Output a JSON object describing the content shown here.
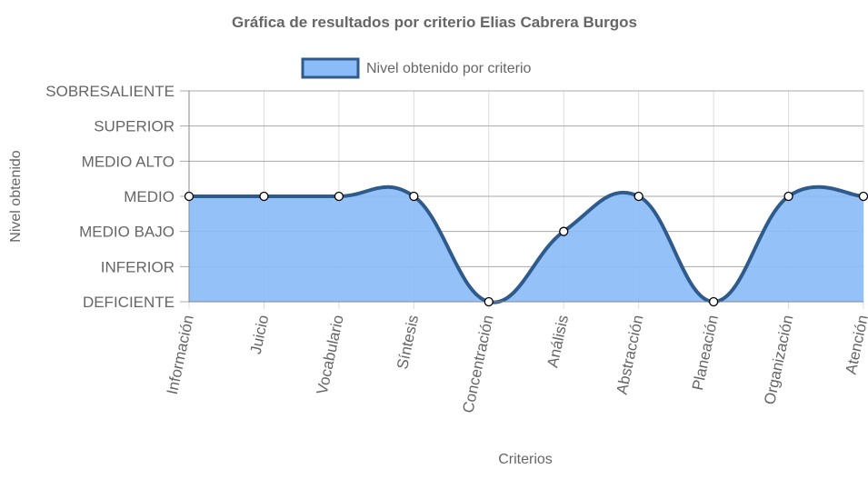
{
  "chart_data": {
    "type": "area",
    "title": "Gráfica de resultados por criterio Elias Cabrera Burgos",
    "xlabel": "Criterios",
    "ylabel": "Nivel obtenido",
    "categories": [
      "Información",
      "Juicio",
      "Vocabulario",
      "Síntesis",
      "Concentración",
      "Análisis",
      "Abstracción",
      "Planeación",
      "Organización",
      "Atención"
    ],
    "y_levels": [
      "DEFICIENTE",
      "INFERIOR",
      "MEDIO BAJO",
      "MEDIO",
      "MEDIO ALTO",
      "SUPERIOR",
      "SOBRESALIENTE"
    ],
    "ylim": [
      0,
      6
    ],
    "series": [
      {
        "name": "Nivel obtenido por criterio",
        "values": [
          3,
          3,
          3,
          3,
          0,
          2,
          3,
          0,
          3,
          3
        ],
        "labels": [
          "MEDIO",
          "MEDIO",
          "MEDIO",
          "MEDIO",
          "DEFICIENTE",
          "MEDIO BAJO",
          "MEDIO",
          "DEFICIENTE",
          "MEDIO",
          "MEDIO"
        ]
      }
    ],
    "legend_position": "top",
    "grid": true,
    "colors": {
      "fill": "#8bbcf7",
      "line": "#2e5a8c",
      "grid": "#dddddd",
      "axis": "#888888",
      "text": "#666666",
      "point_fill": "#ffffff",
      "point_stroke": "#000000"
    }
  }
}
